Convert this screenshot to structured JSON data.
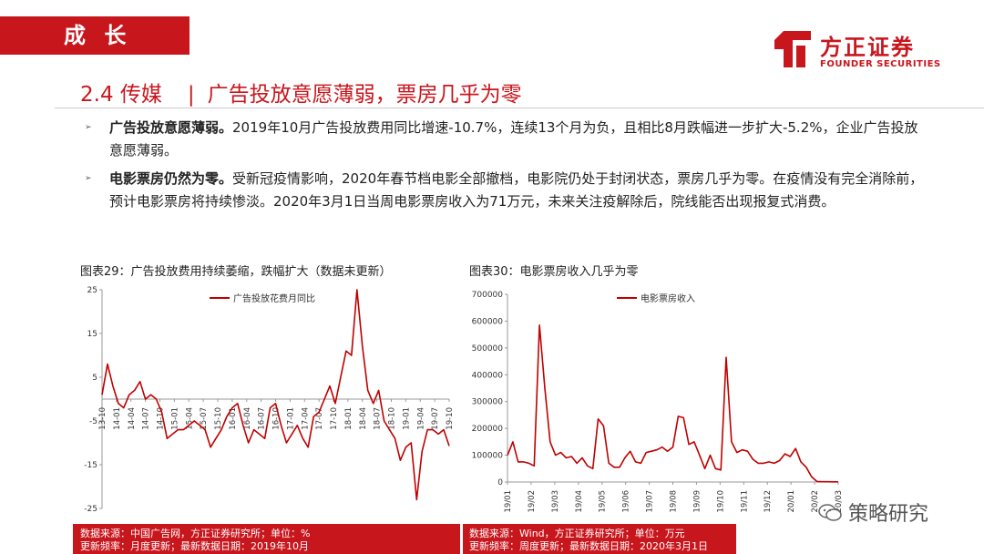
{
  "header": {
    "section_tab": "成 长",
    "logo_cn": "方正证券",
    "logo_en": "FOUNDER SECURITIES",
    "heading_number": "2.4 传媒",
    "heading_separator": "|",
    "heading_title": "广告投放意愿薄弱，票房几乎为零"
  },
  "bullets": [
    {
      "bold": "广告投放意愿薄弱。",
      "text": "2019年10月广告投放费用同比增速-10.7%，连续13个月为负，且相比8月跌幅进一步扩大-5.2%，企业广告投放意愿薄弱。"
    },
    {
      "bold": "电影票房仍然为零。",
      "text": "受新冠疫情影响，2020年春节档电影全部撤档，电影院仍处于封闭状态，票房几乎为零。在疫情没有完全消除前，预计电影票房将持续惨淡。2020年3月1日当周电影票房收入为71万元，未来关注疫解除后，院线能否出现报复式消费。"
    }
  ],
  "chart1": {
    "title": "图表29：广告投放费用持续萎缩，跌幅扩大（数据未更新）",
    "source_line1": "数据来源：中国广告网，方正证券研究所；单位：%",
    "source_line2": "更新频率：月度更新；最新数据日期：2019年10月"
  },
  "chart2": {
    "title": "图表30：电影票房收入几乎为零",
    "source_line1": "数据来源：Wind，方正证券研究所；单位：万元",
    "source_line2": "更新频率：周度更新；最新数据日期：2020年3月1日"
  },
  "watermark": "策略研究",
  "colors": {
    "brand_red": "#c8161d",
    "series_red": "#c00000"
  },
  "chart_data": [
    {
      "type": "line",
      "title": "图表29：广告投放费用持续萎缩，跌幅扩大（数据未更新）",
      "series": [
        {
          "name": "广告投放花费月同比",
          "values": [
            1,
            8,
            3,
            -1,
            -2,
            1,
            2,
            4,
            0,
            1,
            0,
            -3,
            -9,
            -8,
            -7,
            -7,
            -6,
            -5,
            -6,
            -7,
            -11,
            -9,
            -7,
            -4,
            -2,
            -1,
            -6,
            -10,
            -7,
            -8,
            -9,
            -2,
            -1,
            -6,
            -10,
            -8,
            -6,
            -9,
            -11,
            -4,
            -3,
            0,
            3,
            -1,
            5,
            11,
            10,
            25,
            12,
            2,
            -1,
            2,
            -5,
            -7,
            -9,
            -14,
            -11,
            -10,
            -23,
            -12,
            -7,
            -7,
            -8,
            -7,
            -10.7
          ]
        }
      ],
      "x_tick_labels": [
        "13-10",
        "14-01",
        "14-04",
        "14-07",
        "14-10",
        "15-01",
        "15-04",
        "15-07",
        "15-10",
        "16-01",
        "16-04",
        "16-07",
        "16-10",
        "17-01",
        "17-04",
        "17-07",
        "17-10",
        "18-01",
        "18-04",
        "18-07",
        "18-10",
        "19-01",
        "19-04",
        "19-07",
        "19-10"
      ],
      "y_ticks": [
        25,
        15,
        5,
        -5,
        -15,
        -25
      ],
      "ylim": [
        -25,
        25
      ],
      "legend": "top-left",
      "grid": false
    },
    {
      "type": "line",
      "title": "图表30：电影票房收入几乎为零",
      "series": [
        {
          "name": "电影票房收入",
          "values": [
            100000,
            150000,
            75000,
            75000,
            70000,
            60000,
            585000,
            350000,
            150000,
            100000,
            110000,
            90000,
            95000,
            70000,
            90000,
            60000,
            50000,
            235000,
            210000,
            70000,
            55000,
            55000,
            90000,
            115000,
            75000,
            70000,
            110000,
            115000,
            120000,
            130000,
            115000,
            130000,
            245000,
            240000,
            140000,
            150000,
            100000,
            50000,
            100000,
            50000,
            45000,
            465000,
            150000,
            110000,
            120000,
            115000,
            85000,
            70000,
            70000,
            75000,
            70000,
            80000,
            105000,
            95000,
            125000,
            75000,
            55000,
            20000,
            2000,
            1000,
            1000,
            800,
            710
          ]
        }
      ],
      "x_tick_labels": [
        "19/01",
        "19/02",
        "19/03",
        "19/04",
        "19/05",
        "19/06",
        "19/07",
        "19/08",
        "19/09",
        "19/10",
        "19/11",
        "19/12",
        "20/01",
        "20/02",
        "20/03"
      ],
      "y_ticks": [
        700000,
        600000,
        500000,
        400000,
        300000,
        200000,
        100000,
        0
      ],
      "ylim": [
        0,
        700000
      ],
      "legend": "top-left",
      "grid": false
    }
  ]
}
